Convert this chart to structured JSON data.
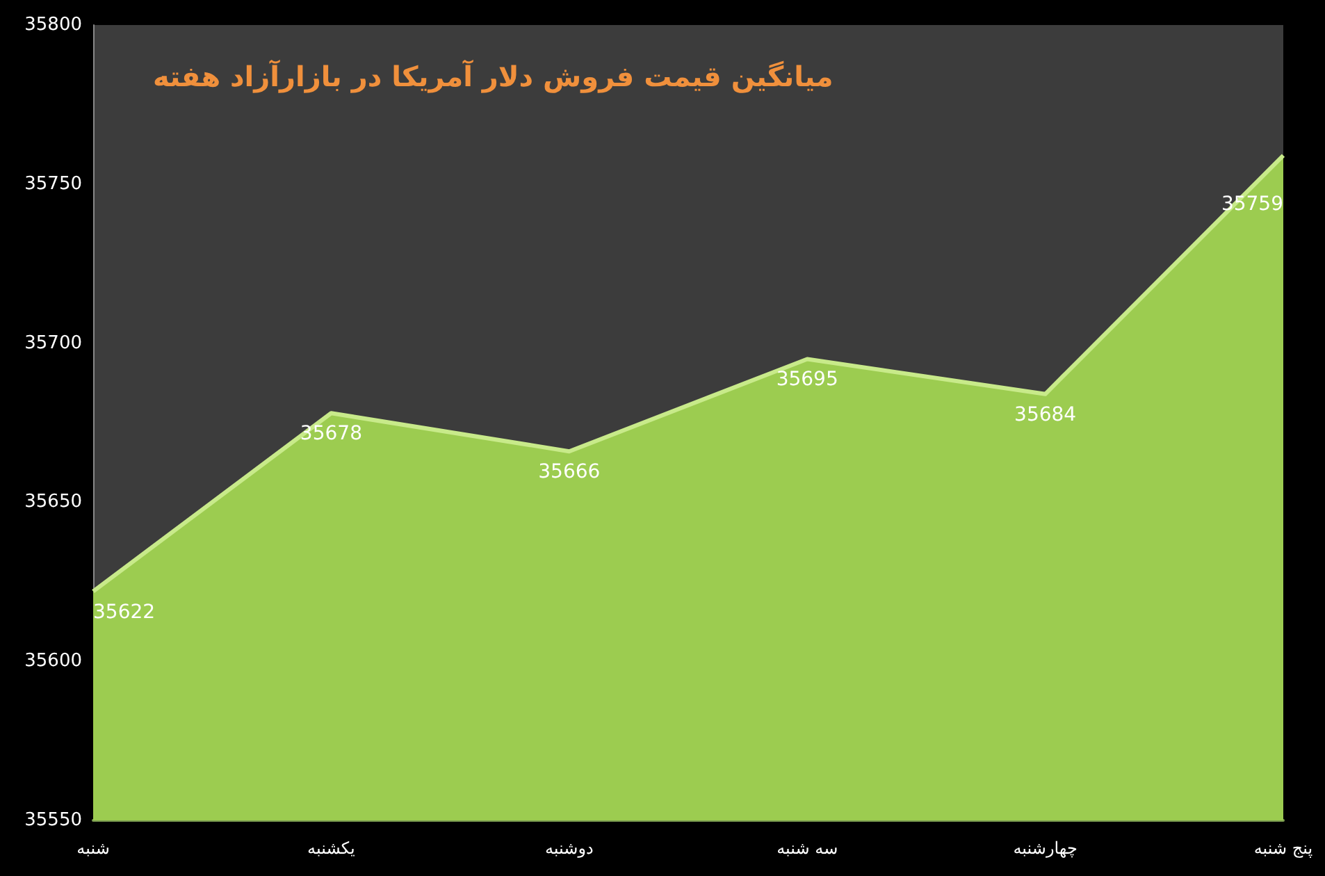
{
  "chart_data": {
    "type": "area",
    "title": "میانگین قیمت فروش دلار آمریکا در بازارآزاد هفته",
    "categories": [
      "شنبه",
      "یکشنبه",
      "دوشنبه",
      "سه شنبه",
      "چهارشنبه",
      "پنج شنبه"
    ],
    "series": [
      {
        "color": "#9ccc50",
        "values": [
          35622,
          35678,
          35666,
          35695,
          35684,
          35759
        ]
      }
    ],
    "ylim": [
      35550,
      35800
    ],
    "yticks": [
      35550,
      35600,
      35650,
      35700,
      35750,
      35800
    ],
    "grid": false,
    "data_labels": true
  }
}
